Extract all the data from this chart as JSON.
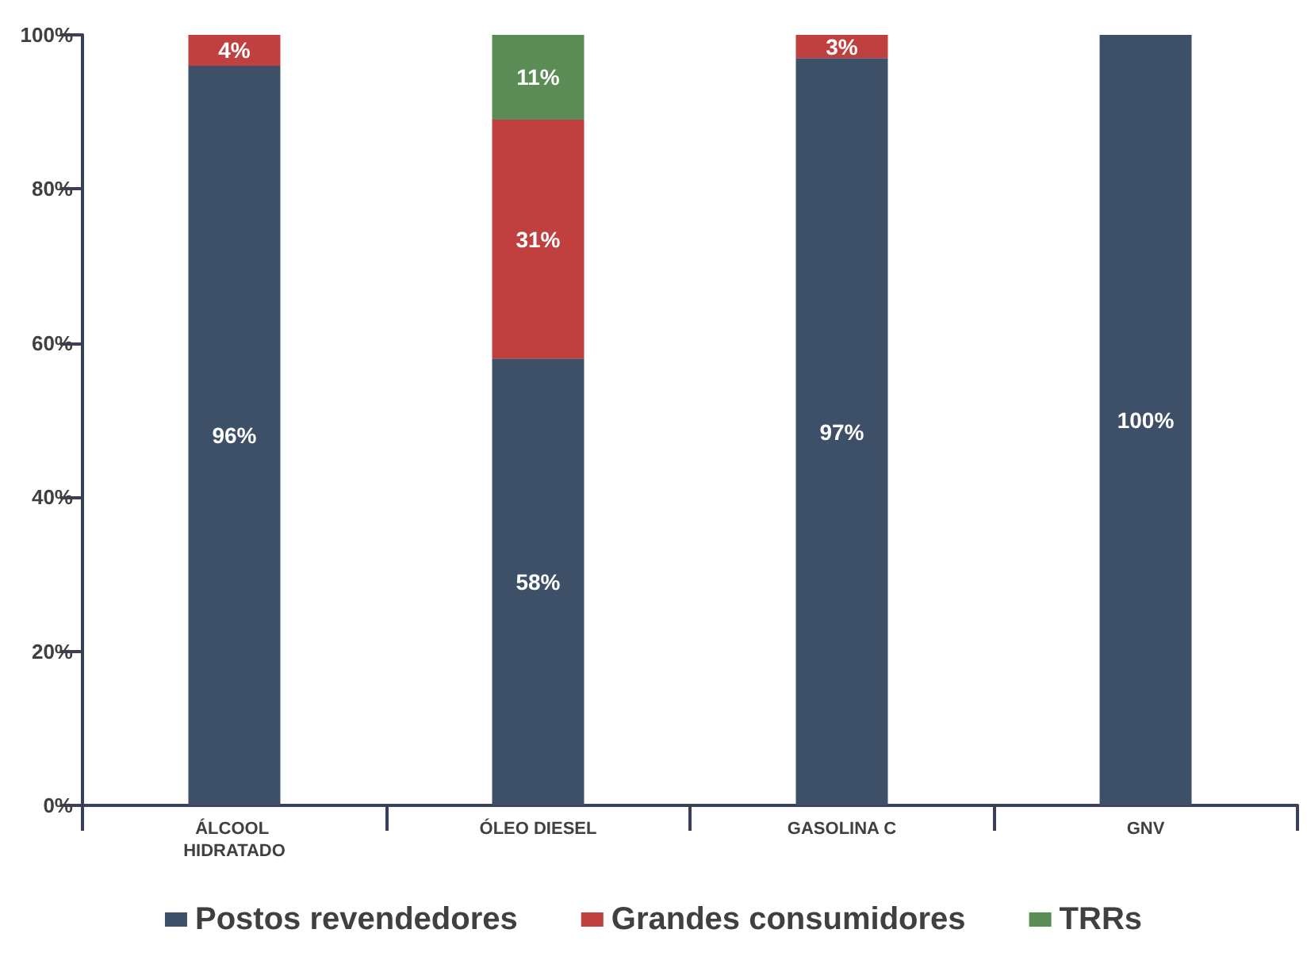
{
  "chart_data": {
    "type": "bar",
    "stacked": true,
    "categories": [
      "ÁLCOOL HIDRATADO",
      "ÓLEO DIESEL",
      "GASOLINA C",
      "GNV"
    ],
    "series": [
      {
        "name": "Postos revendedores",
        "color": "#3e5068",
        "values": [
          96,
          58,
          97,
          100
        ],
        "value_labels": [
          "96%",
          "58%",
          "97%",
          "100%"
        ]
      },
      {
        "name": "Grandes consumidores",
        "color": "#c0403f",
        "values": [
          4,
          31,
          3,
          null
        ],
        "value_labels": [
          "4%",
          "31%",
          "3%",
          null
        ]
      },
      {
        "name": "TRRs",
        "color": "#5b8c55",
        "values": [
          null,
          11,
          null,
          null
        ],
        "value_labels": [
          null,
          "11%",
          null,
          null
        ]
      }
    ],
    "ylim": [
      0,
      100
    ],
    "yticks": [
      {
        "value": 0,
        "label": "0%"
      },
      {
        "value": 20,
        "label": "20%"
      },
      {
        "value": 40,
        "label": "40%"
      },
      {
        "value": 60,
        "label": "60%"
      },
      {
        "value": 80,
        "label": "80%"
      },
      {
        "value": 100,
        "label": "100%"
      }
    ],
    "grid": false,
    "legend": "bottom"
  }
}
